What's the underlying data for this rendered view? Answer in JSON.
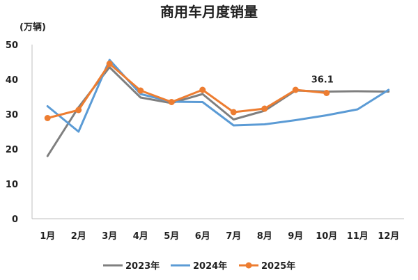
{
  "chart_data": {
    "type": "line",
    "title": "商用车月度销量",
    "ylabel": "(万辆)",
    "xlabel": "",
    "categories": [
      "1月",
      "2月",
      "3月",
      "4月",
      "5月",
      "6月",
      "7月",
      "8月",
      "9月",
      "10月",
      "11月",
      "12月"
    ],
    "ylim": [
      0,
      50
    ],
    "yticks": [
      0,
      10,
      20,
      30,
      40,
      50
    ],
    "grid": false,
    "legend_position": "bottom",
    "series": [
      {
        "name": "2023年",
        "color": "#7f7f7f",
        "marker": false,
        "values": [
          18.0,
          32.0,
          43.5,
          34.8,
          33.2,
          35.8,
          28.5,
          31.0,
          36.8,
          36.5,
          36.6,
          36.5
        ]
      },
      {
        "name": "2024年",
        "color": "#5b9bd5",
        "marker": false,
        "values": [
          32.3,
          25.0,
          45.6,
          35.8,
          33.6,
          33.5,
          26.8,
          27.1,
          28.3,
          29.7,
          31.4,
          37.0
        ]
      },
      {
        "name": "2025年",
        "color": "#ed7d31",
        "marker": true,
        "values": [
          28.9,
          31.2,
          44.5,
          36.8,
          33.5,
          37.0,
          30.6,
          31.6,
          37.0,
          36.1,
          null,
          null
        ]
      }
    ],
    "annotations": [
      {
        "text": "36.1",
        "category": "10月",
        "value": 36.1
      }
    ]
  }
}
